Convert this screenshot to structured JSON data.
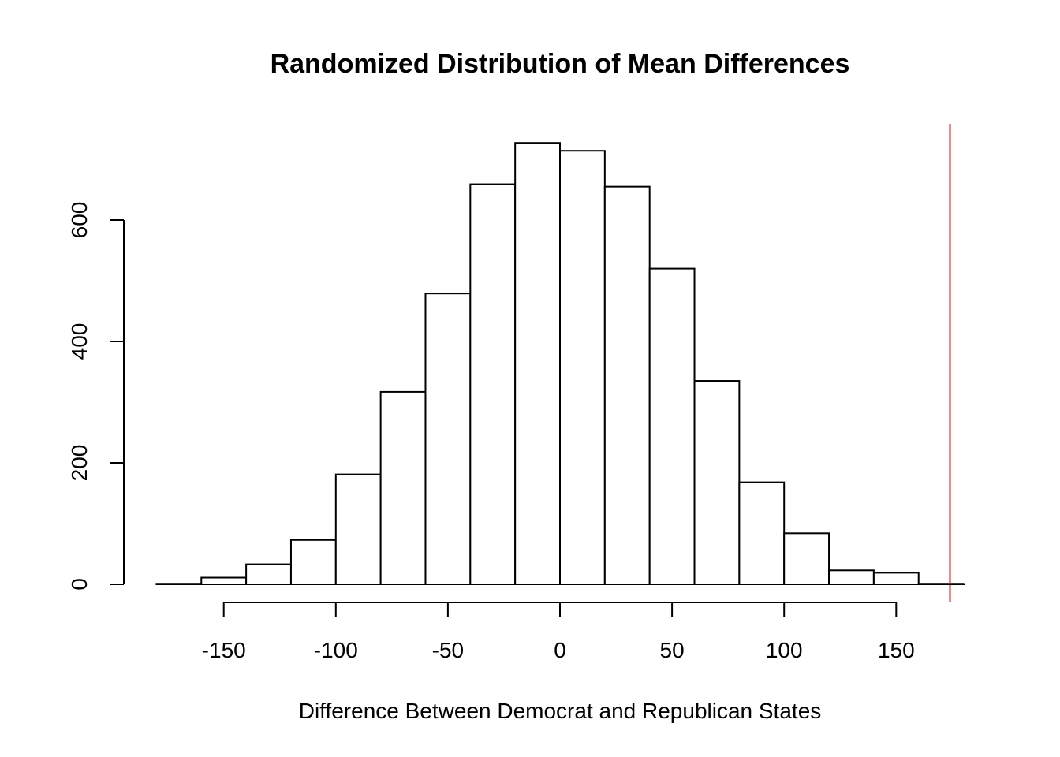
{
  "chart_data": {
    "type": "bar",
    "title": "Randomized Distribution of Mean Differences",
    "xlabel": "Difference Between Democrat and Republican States",
    "ylabel": "",
    "bin_edges": [
      -180,
      -160,
      -140,
      -120,
      -100,
      -80,
      -60,
      -40,
      -20,
      0,
      20,
      40,
      60,
      80,
      100,
      120,
      140,
      160,
      180
    ],
    "values": [
      1,
      11,
      33,
      73,
      181,
      317,
      479,
      659,
      727,
      714,
      655,
      520,
      335,
      168,
      84,
      23,
      19,
      1
    ],
    "xlim": [
      -180,
      180
    ],
    "ylim": [
      0,
      727
    ],
    "x_ticks": [
      -150,
      -100,
      -50,
      0,
      50,
      100,
      150
    ],
    "x_tick_labels": [
      "-150",
      "-100",
      "-50",
      "0",
      "50",
      "100",
      "150"
    ],
    "y_ticks": [
      0,
      200,
      400,
      600
    ],
    "y_tick_labels": [
      "0",
      "200",
      "400",
      "600"
    ],
    "reference_line": {
      "x": 174,
      "color": "#e0141e"
    },
    "grid": false,
    "colors": {
      "bar_fill": "#ffffff",
      "bar_stroke": "#000000"
    }
  }
}
